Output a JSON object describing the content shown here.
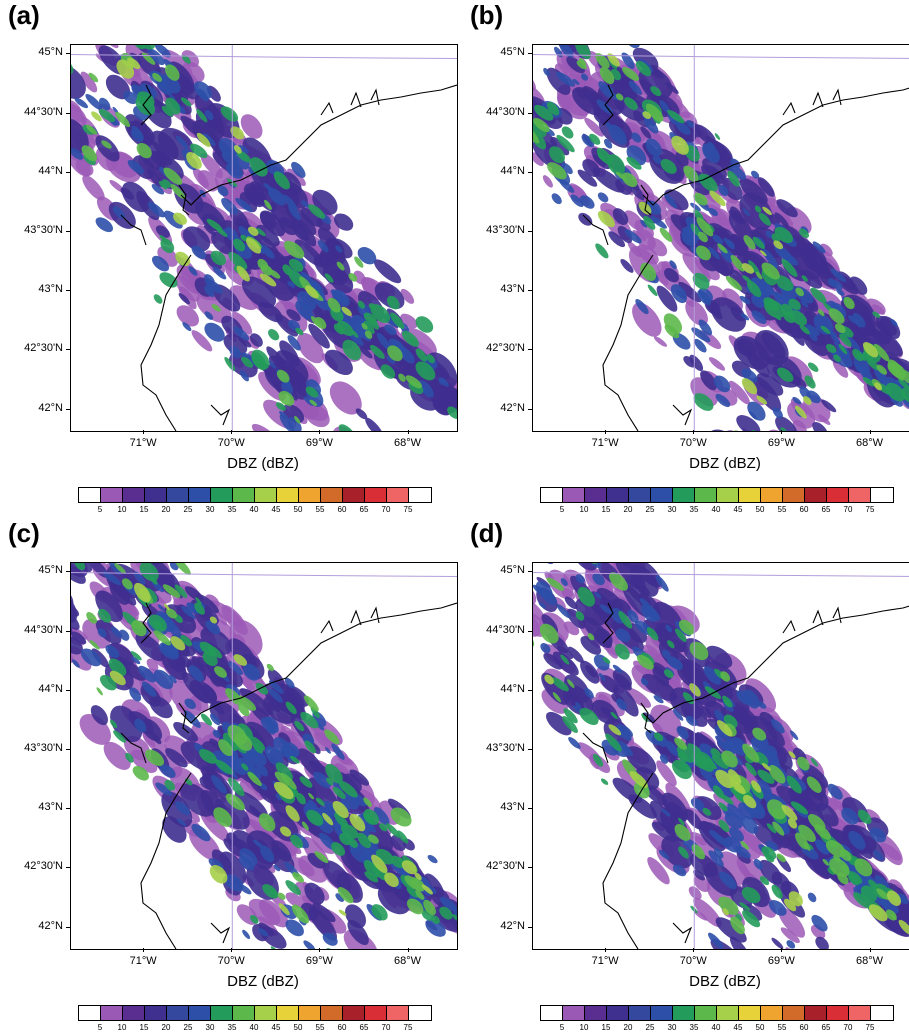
{
  "panels": [
    {
      "label": "(a)"
    },
    {
      "label": "(b)"
    },
    {
      "label": "(c)"
    },
    {
      "label": "(d)"
    }
  ],
  "lat_labels": [
    "45°N",
    "44°30'N",
    "44°N",
    "43°30'N",
    "43°N",
    "42°30'N",
    "42°N"
  ],
  "lon_labels": [
    "71°W",
    "70°W",
    "69°W",
    "68°W"
  ],
  "variable_label": "DBZ  (dBZ)",
  "colorbar": {
    "levels": [
      "5",
      "10",
      "15",
      "20",
      "25",
      "30",
      "35",
      "40",
      "45",
      "50",
      "55",
      "60",
      "65",
      "70",
      "75"
    ],
    "colors": [
      "#ffffff",
      "#9b59b6",
      "#5a2d91",
      "#3f2f8f",
      "#34499d",
      "#2d4fa8",
      "#239b5a",
      "#5cb84a",
      "#a6cf4a",
      "#e8d23a",
      "#efa430",
      "#d26a2a",
      "#a8202a",
      "#d92e35",
      "#ef6464",
      "#ffffff"
    ]
  },
  "map": {
    "lat_range": [
      41.82,
      45.08
    ],
    "lon_range": [
      -71.83,
      -67.45
    ],
    "coastline_color": "#000000",
    "boundary_color": "#b39ddb"
  }
}
